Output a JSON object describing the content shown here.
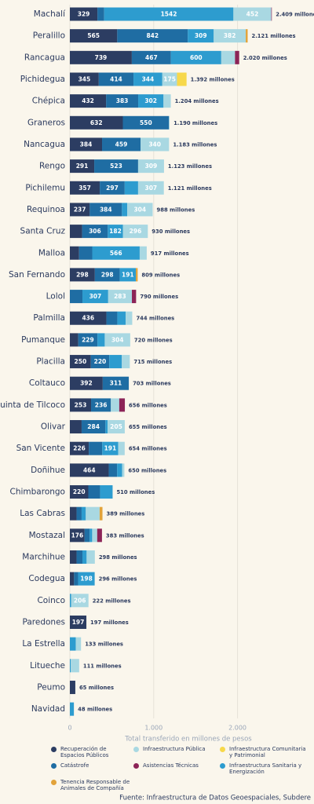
{
  "chart_data": {
    "type": "stacked-barh",
    "categories": [
      "Machalí",
      "Peralillo",
      "Rancagua",
      "Pichidegua",
      "Chépica",
      "Graneros",
      "Nancagua",
      "Rengo",
      "Pichilemu",
      "Requinoa",
      "Santa Cruz",
      "Malloa",
      "San Fernando",
      "Lolol",
      "Palmilla",
      "Pumanque",
      "Placilla",
      "Coltauco",
      "Quinta de Tilcoco",
      "Olivar",
      "San Vicente",
      "Doñihue",
      "Chimbarongo",
      "Las Cabras",
      "Mostazal",
      "Marchihue",
      "Codegua",
      "Coinco",
      "Paredones",
      "La Estrella",
      "Litueche",
      "Peumo",
      "Navidad"
    ],
    "series": [
      {
        "name": "Recuperación de Espacios Públicos",
        "color": "#2c3d62",
        "values": [
          329,
          565,
          739,
          345,
          432,
          632,
          384,
          291,
          357,
          237,
          146,
          110,
          298,
          null,
          436,
          100,
          250,
          392,
          253,
          140,
          226,
          464,
          220,
          80,
          176,
          80,
          50,
          null,
          197,
          null,
          null,
          65,
          null
        ]
      },
      {
        "name": "Infraestructura Pública",
        "color": "#a9d8e2",
        "values": [
          452,
          382,
          164,
          175,
          87,
          8,
          340,
          309,
          307,
          304,
          296,
          84,
          null,
          283,
          78,
          304,
          95,
          null,
          100,
          205,
          77,
          26,
          null,
          165,
          60,
          98,
          null,
          206,
          null,
          63,
          100,
          null,
          null
        ]
      },
      {
        "name": "Infraestructura Comunitaria y Patrimonial",
        "color": "#f7d84a",
        "values": [
          null,
          null,
          null,
          114,
          null,
          null,
          null,
          null,
          null,
          null,
          null,
          null,
          null,
          null,
          null,
          null,
          null,
          null,
          null,
          null,
          null,
          null,
          null,
          null,
          null,
          null,
          null,
          null,
          null,
          null,
          null,
          null,
          null
        ]
      },
      {
        "name": "Catástrofe",
        "color": "#1f6da3",
        "values": [
          80,
          842,
          467,
          414,
          383,
          550,
          459,
          523,
          297,
          384,
          306,
          157,
          298,
          150,
          130,
          229,
          220,
          311,
          236,
          284,
          160,
          100,
          140,
          60,
          60,
          70,
          48,
          null,
          null,
          null,
          null,
          null,
          null
        ]
      },
      {
        "name": "Asistencias Técnicas",
        "color": "#8c2457",
        "values": [
          6,
          null,
          50,
          null,
          null,
          null,
          null,
          null,
          null,
          null,
          null,
          null,
          null,
          50,
          null,
          null,
          null,
          null,
          67,
          null,
          null,
          null,
          null,
          null,
          57,
          null,
          null,
          null,
          null,
          null,
          null,
          null,
          null
        ]
      },
      {
        "name": "Infraestructura Sanitaria y Energización",
        "color": "#2d9ccf",
        "values": [
          1542,
          309,
          600,
          344,
          302,
          null,
          null,
          null,
          160,
          63,
          182,
          566,
          191,
          307,
          100,
          87,
          150,
          null,
          null,
          26,
          191,
          60,
          150,
          50,
          30,
          50,
          198,
          16,
          null,
          70,
          11,
          null,
          48
        ]
      },
      {
        "name": "Tenencia Responsable de Animales de Compañía",
        "color": "#e2a33a",
        "values": [
          null,
          23,
          null,
          null,
          null,
          null,
          null,
          null,
          null,
          null,
          null,
          null,
          22,
          null,
          null,
          null,
          null,
          null,
          null,
          null,
          null,
          null,
          null,
          34,
          null,
          null,
          null,
          null,
          null,
          null,
          null,
          null,
          null
        ]
      }
    ],
    "totals": [
      2409,
      2121,
      2020,
      1392,
      1204,
      1190,
      1183,
      1123,
      1121,
      988,
      930,
      917,
      809,
      790,
      744,
      720,
      715,
      703,
      656,
      655,
      654,
      650,
      510,
      389,
      383,
      298,
      296,
      222,
      197,
      133,
      111,
      65,
      48
    ],
    "total_labels": [
      "2.409 millones",
      "2.121 millones",
      "2.020 millones",
      "1.392 millones",
      "1.204 millones",
      "1.190 millones",
      "1.183 millones",
      "1.123 millones",
      "1.121 millones",
      "988 millones",
      "930 millones",
      "917 millones",
      "809 millones",
      "790 millones",
      "744 millones",
      "720 millones",
      "715 millones",
      "703 millones",
      "656 millones",
      "655 millones",
      "654 millones",
      "650 millones",
      "510 millones",
      "389 millones",
      "383 millones",
      "298 millones",
      "296 millones",
      "222 millones",
      "197 millones",
      "133 millones",
      "111 millones",
      "65 millones",
      "48 millones"
    ],
    "xlim": [
      0,
      2800
    ],
    "xticks": [
      0,
      {
        "value": 1000,
        "label": "1.000"
      },
      {
        "value": 2000,
        "label": "2.000"
      }
    ],
    "grid": true,
    "xlabel": "Total transferido en millones de pesos",
    "source": "Fuente: Infraestructura de Datos Geoespaciales, Subdere"
  }
}
